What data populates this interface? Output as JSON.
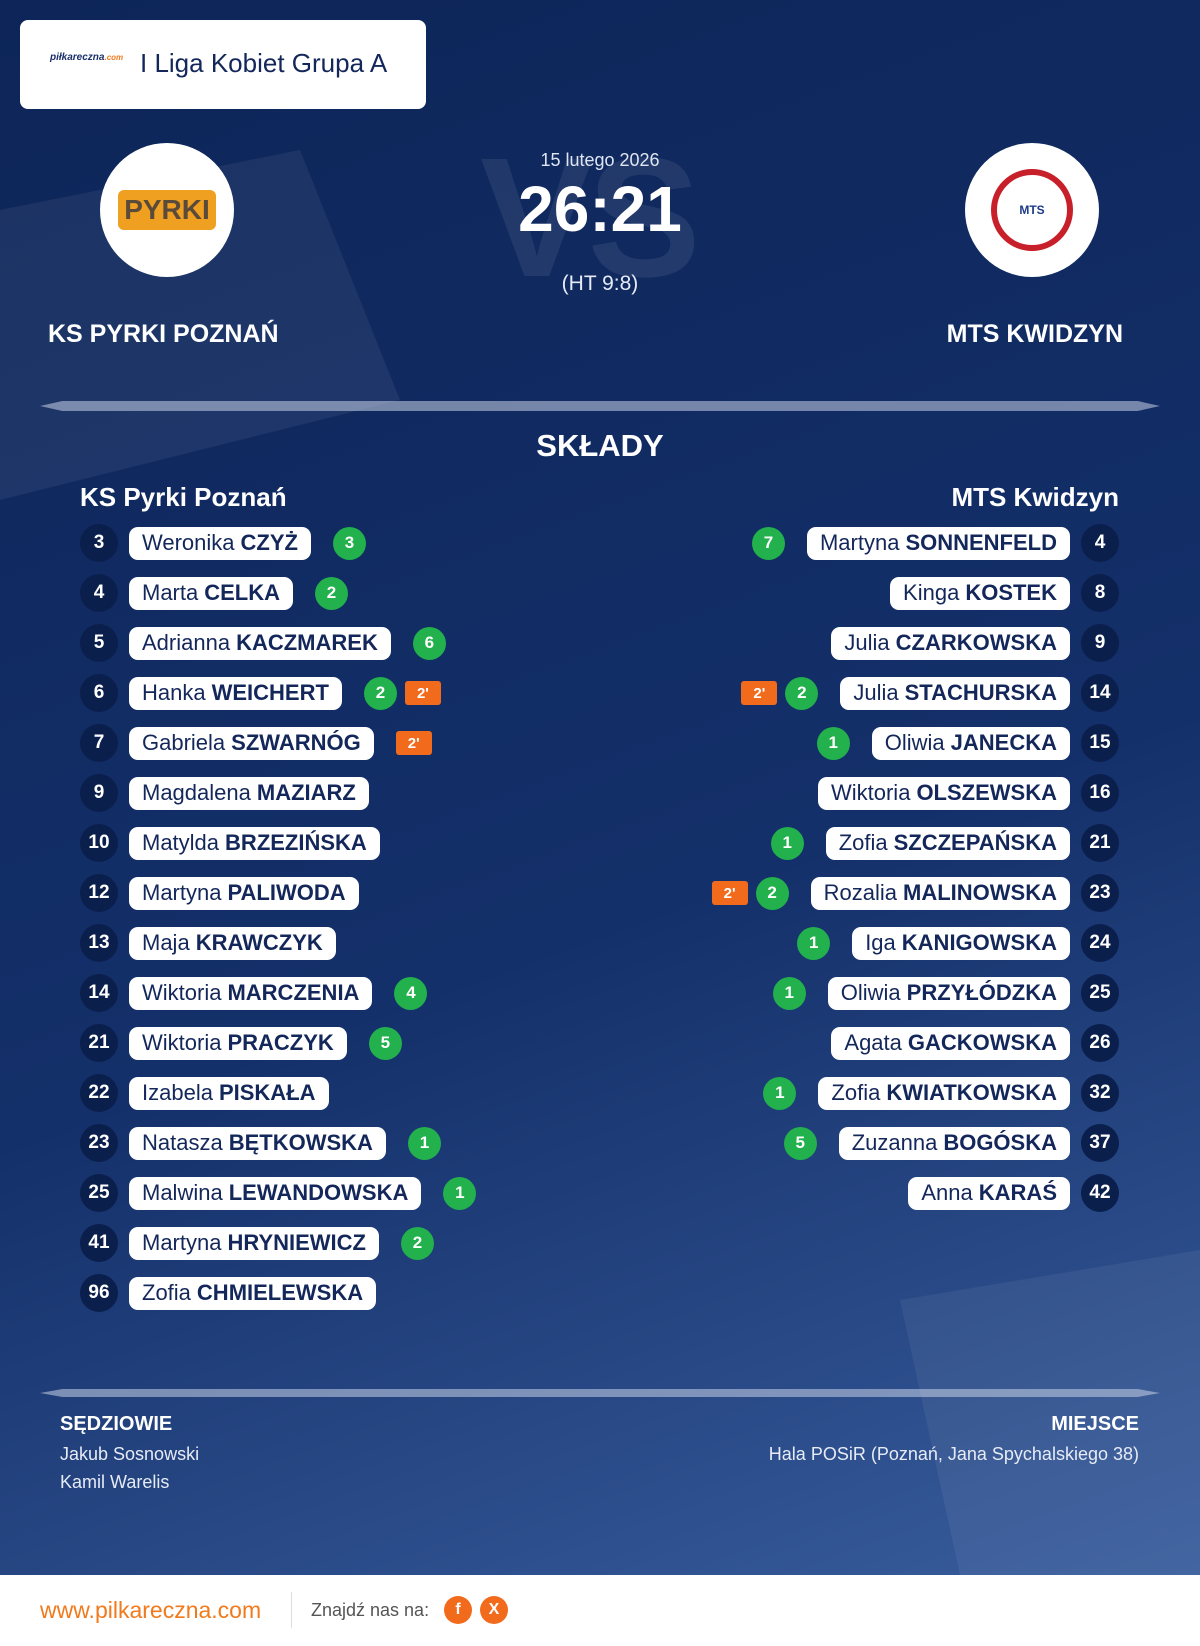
{
  "header": {
    "logo_text": "piłkareczna",
    "logo_suffix": ".com",
    "league": "I Liga Kobiet Grupa A"
  },
  "match": {
    "watermark": "VS",
    "date": "15 lutego 2026",
    "score": "26:21",
    "halftime": "(HT 9:8)",
    "home": {
      "name": "KS PYRKI POZNAŃ",
      "logo_text": "PYRKI"
    },
    "away": {
      "name": "MTS KWIDZYN",
      "logo_text": "MTS"
    }
  },
  "lineups": {
    "title": "SKŁADY",
    "home": {
      "name": "KS Pyrki Poznań",
      "players": [
        {
          "number": 3,
          "first": "Weronika",
          "last": "CZYŻ",
          "goals": 3
        },
        {
          "number": 4,
          "first": "Marta",
          "last": "CELKA",
          "goals": 2
        },
        {
          "number": 5,
          "first": "Adrianna",
          "last": "KACZMAREK",
          "goals": 6
        },
        {
          "number": 6,
          "first": "Hanka",
          "last": "WEICHERT",
          "goals": 2,
          "penalty": "2'"
        },
        {
          "number": 7,
          "first": "Gabriela",
          "last": "SZWARNÓG",
          "penalty": "2'"
        },
        {
          "number": 9,
          "first": "Magdalena",
          "last": "MAZIARZ"
        },
        {
          "number": 10,
          "first": "Matylda",
          "last": "BRZEZIŃSKA"
        },
        {
          "number": 12,
          "first": "Martyna",
          "last": "PALIWODA"
        },
        {
          "number": 13,
          "first": "Maja",
          "last": "KRAWCZYK"
        },
        {
          "number": 14,
          "first": "Wiktoria",
          "last": "MARCZENIA",
          "goals": 4
        },
        {
          "number": 21,
          "first": "Wiktoria",
          "last": "PRACZYK",
          "goals": 5
        },
        {
          "number": 22,
          "first": "Izabela",
          "last": "PISKAŁA"
        },
        {
          "number": 23,
          "first": "Natasza",
          "last": "BĘTKOWSKA",
          "goals": 1
        },
        {
          "number": 25,
          "first": "Malwina",
          "last": "LEWANDOWSKA",
          "goals": 1
        },
        {
          "number": 41,
          "first": "Martyna",
          "last": "HRYNIEWICZ",
          "goals": 2
        },
        {
          "number": 96,
          "first": "Zofia",
          "last": "CHMIELEWSKA"
        }
      ]
    },
    "away": {
      "name": "MTS Kwidzyn",
      "players": [
        {
          "number": 4,
          "first": "Martyna",
          "last": "SONNENFELD",
          "goals": 7
        },
        {
          "number": 8,
          "first": "Kinga",
          "last": "KOSTEK"
        },
        {
          "number": 9,
          "first": "Julia",
          "last": "CZARKOWSKA"
        },
        {
          "number": 14,
          "first": "Julia",
          "last": "STACHURSKA",
          "goals": 2,
          "penalty": "2'"
        },
        {
          "number": 15,
          "first": "Oliwia",
          "last": "JANECKA",
          "goals": 1
        },
        {
          "number": 16,
          "first": "Wiktoria",
          "last": "OLSZEWSKA"
        },
        {
          "number": 21,
          "first": "Zofia",
          "last": "SZCZEPAŃSKA",
          "goals": 1
        },
        {
          "number": 23,
          "first": "Rozalia",
          "last": "MALINOWSKA",
          "goals": 2,
          "penalty": "2'"
        },
        {
          "number": 24,
          "first": "Iga",
          "last": "KANIGOWSKA",
          "goals": 1
        },
        {
          "number": 25,
          "first": "Oliwia",
          "last": "PRZYŁÓDZKA",
          "goals": 1
        },
        {
          "number": 26,
          "first": "Agata",
          "last": "GACKOWSKA"
        },
        {
          "number": 32,
          "first": "Zofia",
          "last": "KWIATKOWSKA",
          "goals": 1
        },
        {
          "number": 37,
          "first": "Zuzanna",
          "last": "BOGÓSKA",
          "goals": 5
        },
        {
          "number": 42,
          "first": "Anna",
          "last": "KARAŚ"
        }
      ]
    }
  },
  "officials": {
    "label": "SĘDZIOWIE",
    "names": [
      "Jakub Sosnowski",
      "Kamil Warelis"
    ]
  },
  "venue": {
    "label": "MIEJSCE",
    "value": "Hala POSiR (Poznań, Jana Spychalskiego 38)"
  },
  "footer": {
    "url": "www.pilkareczna.com",
    "find_us": "Znajdź nas na:",
    "icons": [
      "f",
      "X"
    ]
  }
}
